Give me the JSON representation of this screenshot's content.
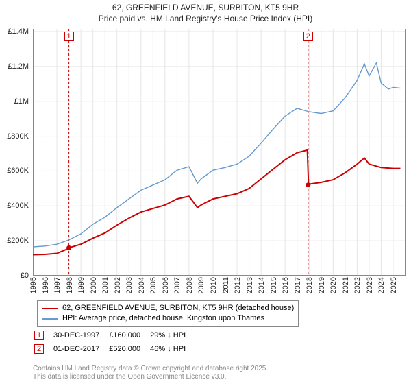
{
  "title_line1": "62, GREENFIELD AVENUE, SURBITON, KT5 9HR",
  "title_line2": "Price paid vs. HM Land Registry's House Price Index (HPI)",
  "chart": {
    "type": "line",
    "x_domain": [
      1995,
      2025.8
    ],
    "y_domain": [
      0,
      1400000
    ],
    "xticks": [
      1995,
      1996,
      1997,
      1998,
      1999,
      2000,
      2001,
      2002,
      2003,
      2004,
      2005,
      2006,
      2007,
      2008,
      2009,
      2010,
      2011,
      2012,
      2013,
      2014,
      2015,
      2016,
      2017,
      2018,
      2019,
      2020,
      2021,
      2022,
      2023,
      2024,
      2025
    ],
    "yticks": [
      0,
      200000,
      400000,
      600000,
      800000,
      1000000,
      1200000,
      1400000
    ],
    "ylabels": [
      "£0",
      "£200K",
      "£400K",
      "£600K",
      "£800K",
      "£1M",
      "£1.2M",
      "£1.4M"
    ],
    "background_color": "#ffffff",
    "grid_color": "#e6e6e6",
    "border_color": "#888888",
    "series": [
      {
        "name": "price_paid",
        "color": "#cc0000",
        "width": 2,
        "data": [
          [
            1995,
            120000
          ],
          [
            1996,
            122000
          ],
          [
            1997,
            128000
          ],
          [
            1997.95,
            155000
          ],
          [
            1998,
            160000
          ],
          [
            1999,
            180000
          ],
          [
            2000,
            215000
          ],
          [
            2001,
            245000
          ],
          [
            2002,
            290000
          ],
          [
            2003,
            330000
          ],
          [
            2004,
            365000
          ],
          [
            2005,
            385000
          ],
          [
            2006,
            405000
          ],
          [
            2007,
            440000
          ],
          [
            2008,
            455000
          ],
          [
            2008.7,
            390000
          ],
          [
            2009,
            405000
          ],
          [
            2010,
            440000
          ],
          [
            2011,
            455000
          ],
          [
            2012,
            470000
          ],
          [
            2013,
            500000
          ],
          [
            2014,
            555000
          ],
          [
            2015,
            610000
          ],
          [
            2016,
            665000
          ],
          [
            2017,
            705000
          ],
          [
            2017.85,
            720000
          ],
          [
            2017.95,
            520000
          ],
          [
            2018,
            525000
          ],
          [
            2019,
            535000
          ],
          [
            2020,
            550000
          ],
          [
            2021,
            590000
          ],
          [
            2022,
            640000
          ],
          [
            2022.6,
            675000
          ],
          [
            2023,
            640000
          ],
          [
            2024,
            620000
          ],
          [
            2025,
            615000
          ],
          [
            2025.6,
            615000
          ]
        ],
        "markers": [
          [
            1998,
            160000
          ],
          [
            2017.92,
            520000
          ]
        ]
      },
      {
        "name": "hpi",
        "color": "#6699cc",
        "width": 1.4,
        "data": [
          [
            1995,
            165000
          ],
          [
            1996,
            170000
          ],
          [
            1997,
            180000
          ],
          [
            1998,
            205000
          ],
          [
            1999,
            240000
          ],
          [
            2000,
            295000
          ],
          [
            2001,
            335000
          ],
          [
            2002,
            390000
          ],
          [
            2003,
            440000
          ],
          [
            2004,
            490000
          ],
          [
            2005,
            520000
          ],
          [
            2006,
            550000
          ],
          [
            2007,
            605000
          ],
          [
            2008,
            625000
          ],
          [
            2008.7,
            530000
          ],
          [
            2009,
            555000
          ],
          [
            2010,
            605000
          ],
          [
            2011,
            620000
          ],
          [
            2012,
            640000
          ],
          [
            2013,
            685000
          ],
          [
            2014,
            760000
          ],
          [
            2015,
            840000
          ],
          [
            2016,
            915000
          ],
          [
            2017,
            960000
          ],
          [
            2018,
            940000
          ],
          [
            2019,
            930000
          ],
          [
            2020,
            945000
          ],
          [
            2021,
            1020000
          ],
          [
            2022,
            1120000
          ],
          [
            2022.6,
            1215000
          ],
          [
            2023,
            1145000
          ],
          [
            2023.6,
            1220000
          ],
          [
            2024,
            1105000
          ],
          [
            2024.6,
            1070000
          ],
          [
            2025,
            1080000
          ],
          [
            2025.6,
            1075000
          ]
        ]
      }
    ],
    "vmarkers": [
      {
        "id": "1",
        "x": 1998,
        "color": "#cc0000"
      },
      {
        "id": "2",
        "x": 2017.92,
        "color": "#cc0000"
      }
    ]
  },
  "legend": [
    {
      "color": "#cc0000",
      "label": "62, GREENFIELD AVENUE, SURBITON, KT5 9HR (detached house)"
    },
    {
      "color": "#6699cc",
      "label": "HPI: Average price, detached house, Kingston upon Thames"
    }
  ],
  "events": [
    {
      "id": "1",
      "color": "#cc0000",
      "date": "30-DEC-1997",
      "price": "£160,000",
      "delta": "29% ↓ HPI"
    },
    {
      "id": "2",
      "color": "#cc0000",
      "date": "01-DEC-2017",
      "price": "£520,000",
      "delta": "46% ↓ HPI"
    }
  ],
  "credits_line1": "Contains HM Land Registry data © Crown copyright and database right 2025.",
  "credits_line2": "This data is licensed under the Open Government Licence v3.0."
}
